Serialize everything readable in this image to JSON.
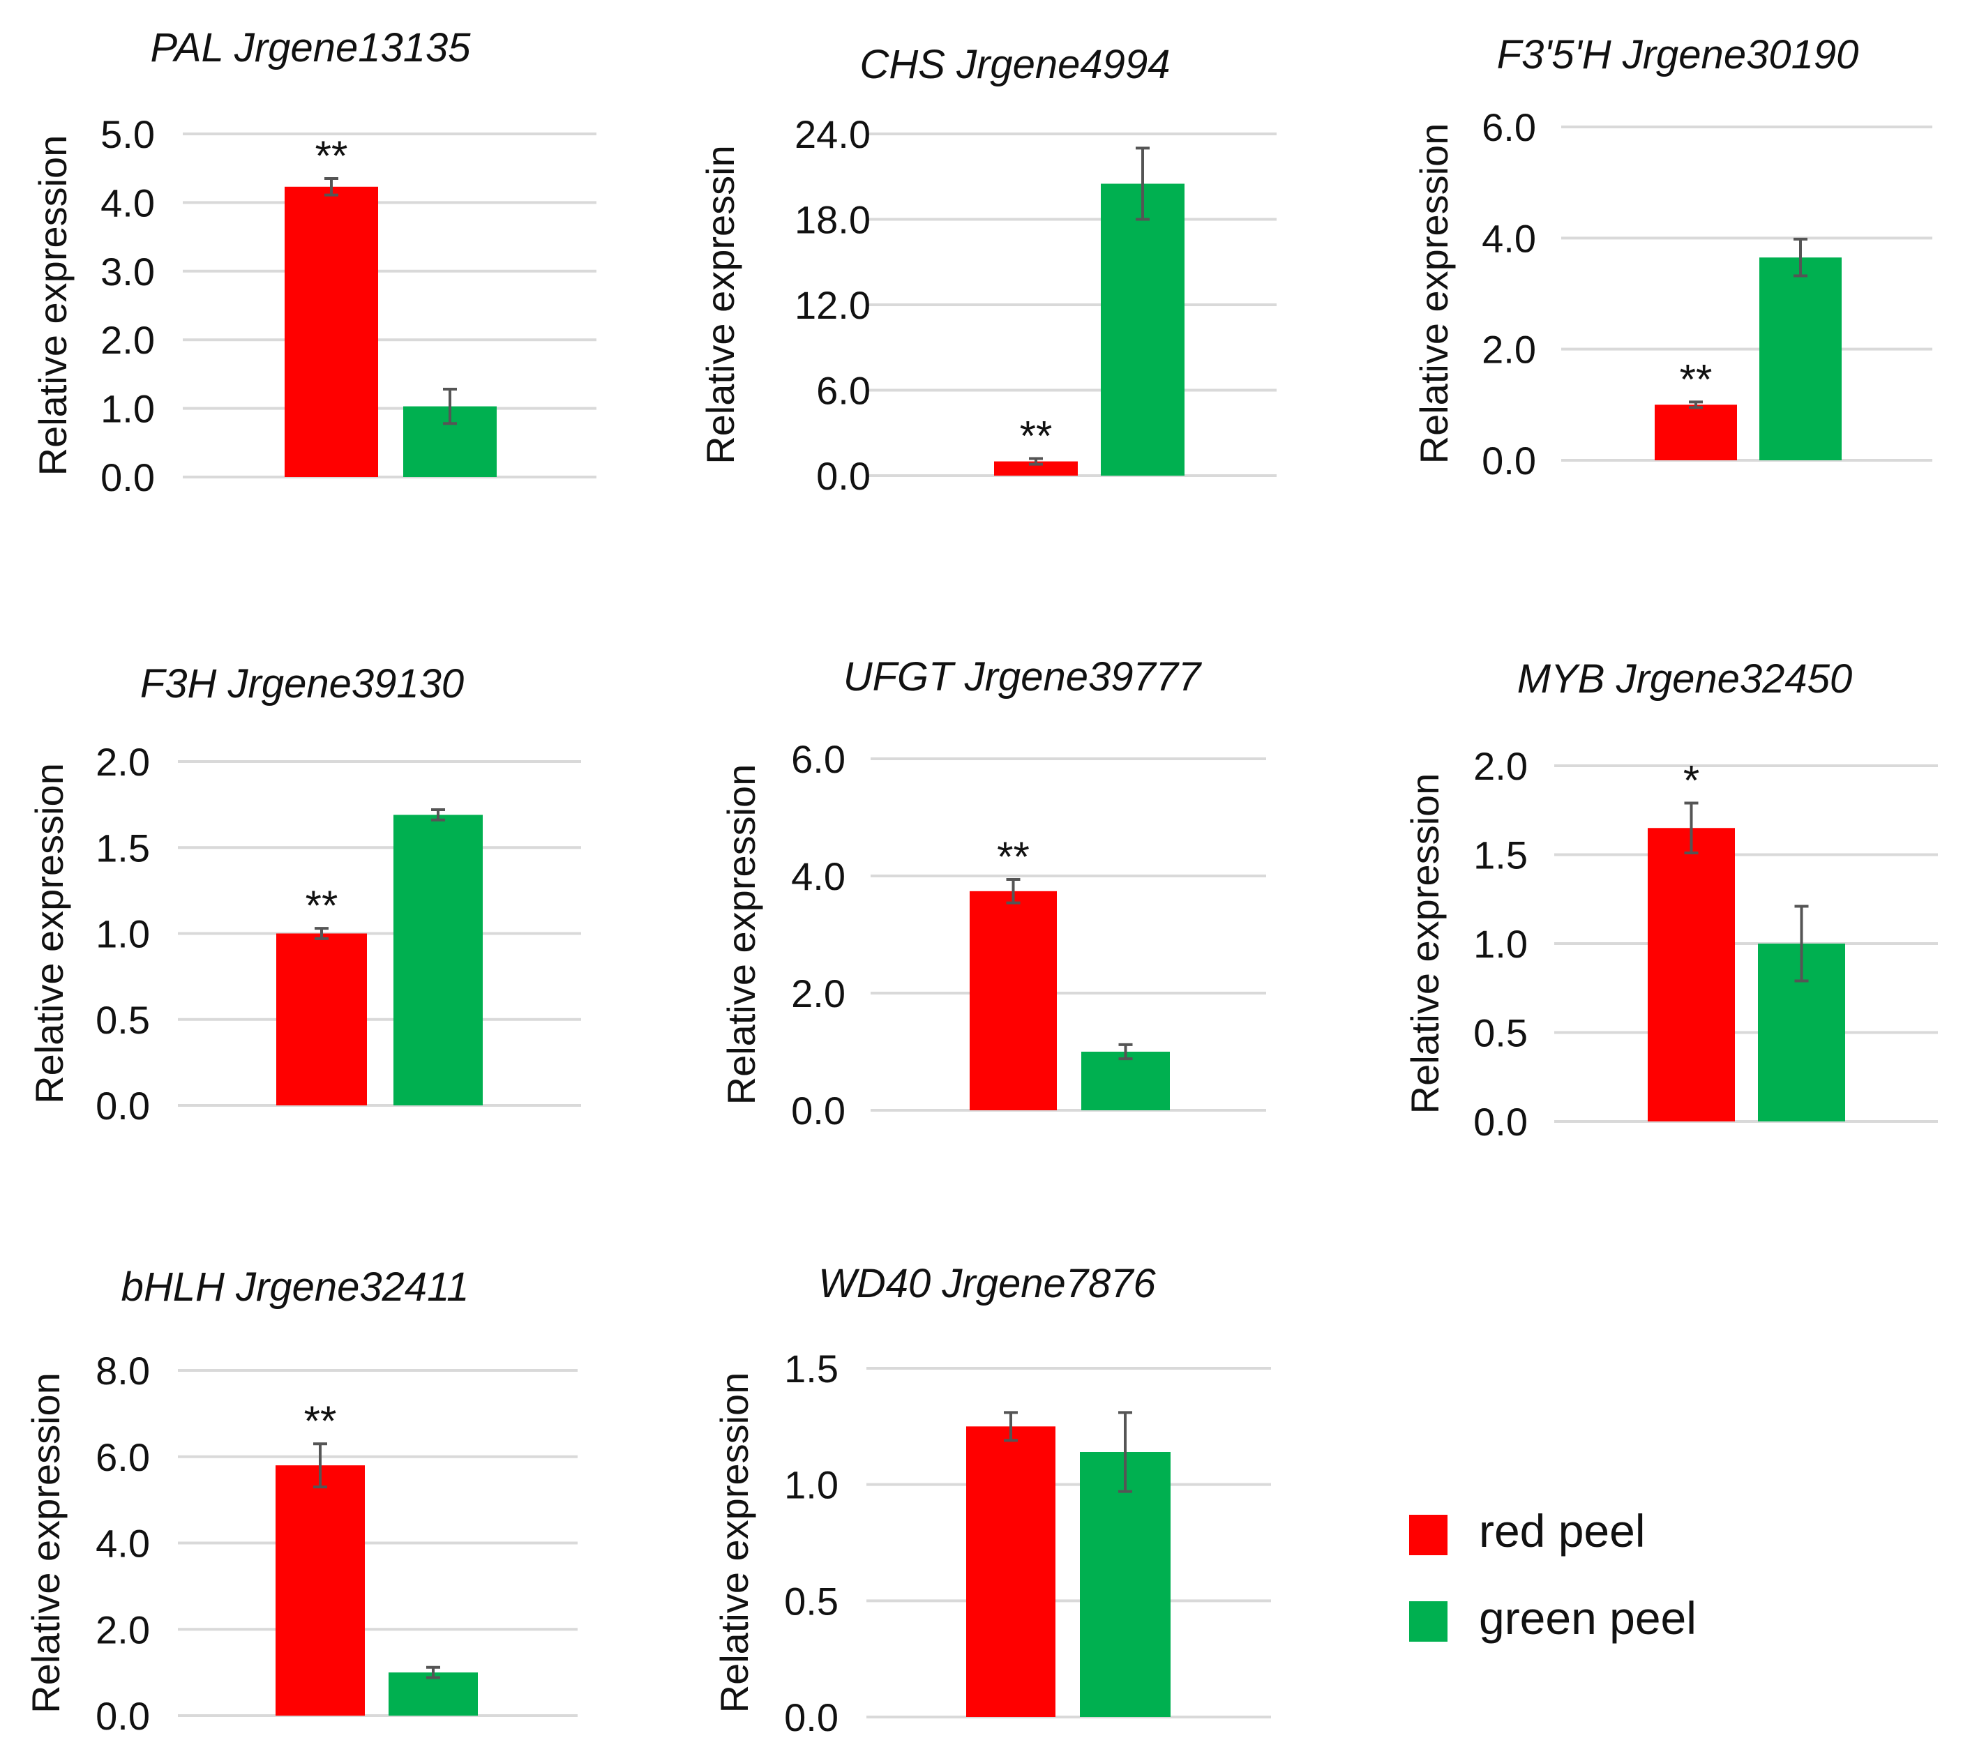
{
  "colors": {
    "red_peel": "#ff0000",
    "green_peel": "#00b050"
  },
  "legend": [
    {
      "label": "red peel",
      "color": "#ff0000"
    },
    {
      "label": "green peel",
      "color": "#00b050"
    }
  ],
  "chart_data": [
    {
      "type": "bar",
      "title": "PAL  Jrgene13135",
      "ylabel": "Relative expression",
      "ylim": [
        0,
        5
      ],
      "yticks": [
        "0.0",
        "1.0",
        "2.0",
        "3.0",
        "4.0",
        "5.0"
      ],
      "ytick_values": [
        0,
        1,
        2,
        3,
        4,
        5
      ],
      "series": [
        {
          "name": "red peel",
          "value": 4.23,
          "error": 0.12,
          "significance": "**"
        },
        {
          "name": "green peel",
          "value": 1.03,
          "error": 0.25,
          "significance": ""
        }
      ]
    },
    {
      "type": "bar",
      "title": "CHS  Jrgene4994",
      "ylabel": "Relative expressin",
      "ylim": [
        0,
        24
      ],
      "yticks": [
        "0.0",
        "6.0",
        "12.0",
        "18.0",
        "24.0"
      ],
      "ytick_values": [
        0,
        6,
        12,
        18,
        24
      ],
      "series": [
        {
          "name": "red peel",
          "value": 1.0,
          "error": 0.2,
          "significance": "**"
        },
        {
          "name": "green peel",
          "value": 20.5,
          "error": 2.5,
          "significance": ""
        }
      ]
    },
    {
      "type": "bar",
      "title": "F3'5'H  Jrgene30190",
      "ylabel": "Relative expression",
      "ylim": [
        0,
        6
      ],
      "yticks": [
        "0.0",
        "2.0",
        "4.0",
        "6.0"
      ],
      "ytick_values": [
        0,
        2,
        4,
        6
      ],
      "series": [
        {
          "name": "red peel",
          "value": 1.0,
          "error": 0.05,
          "significance": "**"
        },
        {
          "name": "green peel",
          "value": 3.65,
          "error": 0.33,
          "significance": ""
        }
      ]
    },
    {
      "type": "bar",
      "title": "F3H  Jrgene39130",
      "ylabel": "Relative expression",
      "ylim": [
        0,
        2
      ],
      "yticks": [
        "0.0",
        "0.5",
        "1.0",
        "1.5",
        "2.0"
      ],
      "ytick_values": [
        0,
        0.5,
        1,
        1.5,
        2
      ],
      "series": [
        {
          "name": "red peel",
          "value": 1.0,
          "error": 0.03,
          "significance": "**"
        },
        {
          "name": "green peel",
          "value": 1.69,
          "error": 0.03,
          "significance": ""
        }
      ]
    },
    {
      "type": "bar",
      "title": "UFGT  Jrgene39777",
      "ylabel": "Relative expression",
      "ylim": [
        0,
        6
      ],
      "yticks": [
        "0.0",
        "2.0",
        "4.0",
        "6.0"
      ],
      "ytick_values": [
        0,
        2,
        4,
        6
      ],
      "series": [
        {
          "name": "red peel",
          "value": 3.74,
          "error": 0.2,
          "significance": "**"
        },
        {
          "name": "green peel",
          "value": 1.0,
          "error": 0.12,
          "significance": ""
        }
      ]
    },
    {
      "type": "bar",
      "title": "MYB  Jrgene32450",
      "ylabel": "Relative expression",
      "ylim": [
        0,
        2
      ],
      "yticks": [
        "0.0",
        "0.5",
        "1.0",
        "1.5",
        "2.0"
      ],
      "ytick_values": [
        0,
        0.5,
        1,
        1.5,
        2
      ],
      "series": [
        {
          "name": "red peel",
          "value": 1.65,
          "error": 0.14,
          "significance": "*"
        },
        {
          "name": "green peel",
          "value": 1.0,
          "error": 0.21,
          "significance": ""
        }
      ]
    },
    {
      "type": "bar",
      "title": "bHLH  Jrgene32411",
      "ylabel": "Relative expression",
      "ylim": [
        0,
        8
      ],
      "yticks": [
        "0.0",
        "2.0",
        "4.0",
        "6.0",
        "8.0"
      ],
      "ytick_values": [
        0,
        2,
        4,
        6,
        8
      ],
      "series": [
        {
          "name": "red peel",
          "value": 5.8,
          "error": 0.5,
          "significance": "**"
        },
        {
          "name": "green peel",
          "value": 1.0,
          "error": 0.12,
          "significance": ""
        }
      ]
    },
    {
      "type": "bar",
      "title": "WD40  Jrgene7876",
      "ylabel": "Relative expression",
      "ylim": [
        0,
        1.5
      ],
      "yticks": [
        "0.0",
        "0.5",
        "1.0",
        "1.5"
      ],
      "ytick_values": [
        0,
        0.5,
        1,
        1.5
      ],
      "series": [
        {
          "name": "red peel",
          "value": 1.25,
          "error": 0.06,
          "significance": ""
        },
        {
          "name": "green peel",
          "value": 1.14,
          "error": 0.17,
          "significance": ""
        }
      ]
    }
  ]
}
